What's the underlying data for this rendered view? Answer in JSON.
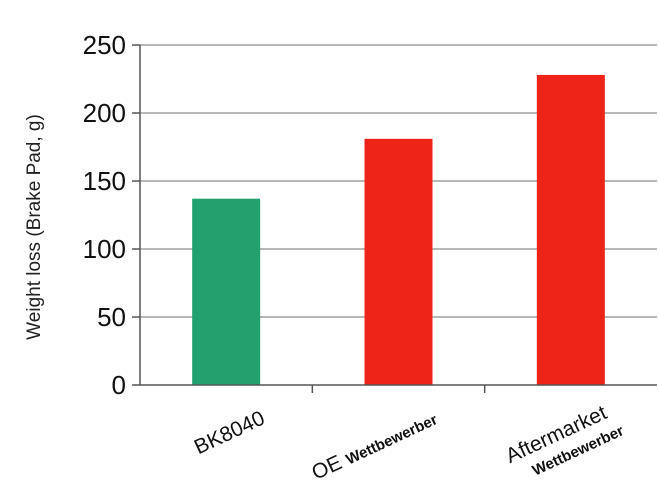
{
  "chart_data": {
    "type": "bar",
    "title": "",
    "xlabel": "",
    "ylabel": "Weight loss (Brake Pad, g)",
    "ylim": [
      0,
      250
    ],
    "yticks": [
      0,
      50,
      100,
      150,
      200,
      250
    ],
    "grid": true,
    "categories": [
      {
        "main": "BK8040",
        "sub": ""
      },
      {
        "main": "OE",
        "sub": "Wettbewerber"
      },
      {
        "main": "Aftermarket",
        "sub": "Wettbewerber"
      }
    ],
    "values": [
      137,
      181,
      228
    ],
    "colors": [
      "#22a06e",
      "#ee2419",
      "#ee2419"
    ]
  }
}
